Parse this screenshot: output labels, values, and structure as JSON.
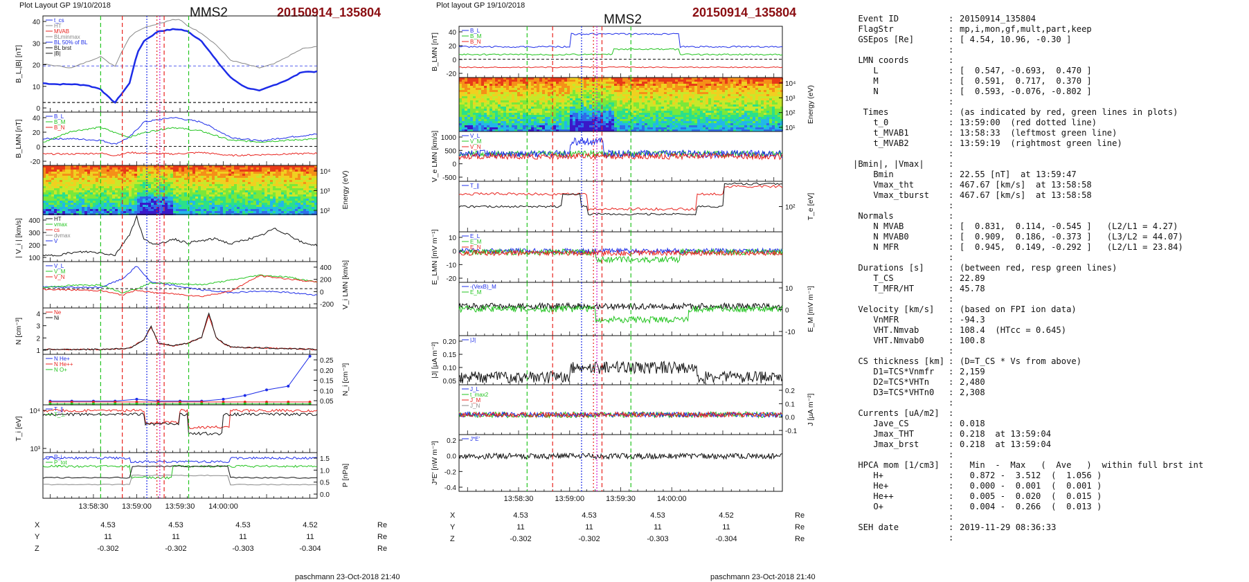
{
  "left_figure": {
    "layout_label": "Plot Layout GP 19/10/2018",
    "spacecraft": "MMS2",
    "event": "20150914_135804",
    "footer": "paschmann 23-Oct-2018 21:40",
    "time_ticks": [
      "13:58:30",
      "13:59:00",
      "13:59:30",
      "14:00:00"
    ],
    "positions": {
      "rows": [
        {
          "label": "X",
          "values": [
            "4.53",
            "4.53",
            "4.53",
            "4.52"
          ],
          "unit": "Re"
        },
        {
          "label": "Y",
          "values": [
            "11",
            "11",
            "11",
            "11"
          ],
          "unit": "Re"
        },
        {
          "label": "Z",
          "values": [
            "-0.302",
            "-0.302",
            "-0.303",
            "-0.304"
          ],
          "unit": "Re"
        }
      ]
    }
  },
  "middle_figure": {
    "layout_label": "Plot layout GP 19/10/2018",
    "spacecraft": "MMS2",
    "event": "20150914_135804",
    "footer": "paschmann 23-Oct-2018 21:40",
    "time_ticks": [
      "13:58:30",
      "13:59:00",
      "13:59:30",
      "14:00:00"
    ],
    "positions": {
      "rows": [
        {
          "label": "X",
          "values": [
            "4.53",
            "4.53",
            "4.53",
            "4.52"
          ],
          "unit": "Re"
        },
        {
          "label": "Y",
          "values": [
            "11",
            "11",
            "11",
            "11"
          ],
          "unit": "Re"
        },
        {
          "label": "Z",
          "values": [
            "-0.302",
            "-0.302",
            "-0.303",
            "-0.304"
          ],
          "unit": "Re"
        }
      ]
    }
  },
  "colors": {
    "red": "#e8221d",
    "green": "#22c41f",
    "blue": "#1d2ce8",
    "black": "#111111",
    "gray": "#888888",
    "darkred": "#8b0e12",
    "magenta": "#d21bd2"
  },
  "chart_data": [
    {
      "type": "line",
      "panel": "left-1",
      "ylabel": "B_L,|B| [nT]",
      "yticks": [
        "40",
        "30",
        "20",
        "10",
        "0"
      ],
      "legend": [
        "t_cs",
        "HT",
        "MVAB",
        "BLminmax",
        "BL 50% of BL",
        "BL brst",
        "|B|"
      ],
      "series": [
        {
          "name": "BL",
          "color": "blue",
          "x_s": [
            0,
            10,
            20,
            30,
            40,
            45,
            50,
            55,
            60,
            65,
            70,
            80,
            90,
            95,
            100,
            110,
            120,
            130,
            140,
            150,
            160,
            170,
            180,
            190
          ],
          "y": [
            10,
            9.5,
            9.5,
            9,
            7,
            3,
            0,
            5,
            10,
            25,
            32,
            37,
            38,
            38,
            37,
            32,
            22,
            13,
            8,
            6,
            9,
            12,
            16,
            16
          ]
        },
        {
          "name": "|B|",
          "color": "gray",
          "x_s": [
            0,
            10,
            20,
            30,
            40,
            45,
            50,
            55,
            60,
            65,
            70,
            80,
            90,
            95,
            100,
            110,
            120,
            130,
            140,
            150,
            160,
            170,
            180,
            190
          ],
          "y": [
            20,
            19,
            18,
            21,
            24,
            21,
            19,
            27,
            34,
            37,
            39,
            41,
            43,
            43,
            40,
            36,
            30,
            22,
            20,
            18,
            20,
            24,
            28,
            29
          ]
        }
      ]
    },
    {
      "type": "line",
      "panel": "left-2",
      "ylabel": "B_LMN [nT]",
      "yticks": [
        "40",
        "20",
        "0",
        "-20"
      ],
      "legend": [
        "B_L",
        "B_M",
        "B_N"
      ],
      "series": [
        {
          "name": "B_L",
          "color": "blue",
          "x_s": [
            0,
            20,
            40,
            50,
            60,
            70,
            90,
            110,
            130,
            150,
            170,
            190
          ],
          "y": [
            10,
            10,
            8,
            3,
            12,
            32,
            38,
            32,
            12,
            7,
            12,
            16
          ]
        },
        {
          "name": "B_M",
          "color": "green",
          "x_s": [
            0,
            20,
            40,
            50,
            60,
            70,
            90,
            110,
            130,
            150,
            170,
            190
          ],
          "y": [
            5,
            20,
            25,
            18,
            12,
            18,
            25,
            20,
            8,
            6,
            8,
            10
          ]
        },
        {
          "name": "B_N",
          "color": "red",
          "x_s": [
            0,
            20,
            40,
            50,
            60,
            70,
            90,
            110,
            130,
            150,
            170,
            190
          ],
          "y": [
            -10,
            -10,
            -9,
            -12,
            -8,
            -9,
            -10,
            -8,
            -12,
            -11,
            -10,
            -9
          ]
        }
      ]
    },
    {
      "type": "heatmap",
      "panel": "left-3",
      "ylabel": "Energy (eV)",
      "yticks": [
        "10⁴",
        "10³",
        "10²"
      ]
    },
    {
      "type": "line",
      "panel": "left-4",
      "ylabel": "| V_i | [km/s]",
      "yticks": [
        "400",
        "300",
        "200",
        "100"
      ],
      "legend": [
        "HT",
        "vmax",
        "cs",
        "dvmax",
        "V"
      ],
      "series": [
        {
          "name": "V",
          "color": "black",
          "x_s": [
            0,
            10,
            20,
            30,
            40,
            50,
            60,
            65,
            70,
            80,
            90,
            100,
            110,
            120,
            130,
            140,
            150,
            160,
            170,
            180,
            190
          ],
          "y": [
            100,
            110,
            130,
            140,
            130,
            110,
            300,
            460,
            250,
            200,
            260,
            220,
            240,
            260,
            210,
            250,
            280,
            350,
            300,
            220,
            200
          ]
        }
      ]
    },
    {
      "type": "line",
      "panel": "left-5",
      "ylabel": "V_i LMN [km/s]",
      "yticks": [
        "400",
        "200",
        "0",
        "-200"
      ],
      "legend": [
        "V_L",
        "V_M",
        "V_N"
      ],
      "series": [
        {
          "name": "V_L",
          "color": "blue",
          "x_s": [
            0,
            20,
            40,
            55,
            65,
            75,
            90,
            110,
            130,
            150,
            170,
            190
          ],
          "y": [
            30,
            20,
            20,
            150,
            350,
            100,
            50,
            -20,
            -60,
            -40,
            -60,
            -100
          ]
        },
        {
          "name": "V_M",
          "color": "green",
          "x_s": [
            0,
            20,
            40,
            55,
            65,
            75,
            90,
            110,
            130,
            150,
            170,
            190
          ],
          "y": [
            20,
            50,
            60,
            -60,
            0,
            90,
            80,
            60,
            130,
            210,
            180,
            100
          ]
        },
        {
          "name": "V_N",
          "color": "red",
          "x_s": [
            0,
            20,
            40,
            55,
            65,
            75,
            90,
            110,
            130,
            150,
            170,
            190
          ],
          "y": [
            -10,
            -20,
            -30,
            -100,
            -20,
            -60,
            -80,
            -120,
            -40,
            200,
            150,
            100
          ]
        }
      ]
    },
    {
      "type": "line",
      "panel": "left-6",
      "ylabel": "N [cm⁻³]",
      "yticks": [
        "4",
        "3",
        "2",
        "1"
      ],
      "legend": [
        "Ne",
        "Ni"
      ],
      "series": [
        {
          "name": "Ne",
          "color": "red",
          "x_s": [
            0,
            40,
            60,
            70,
            75,
            80,
            90,
            100,
            110,
            115,
            120,
            125,
            130,
            160,
            190
          ],
          "y": [
            1,
            1,
            1.1,
            1.8,
            2.8,
            1.5,
            1.3,
            1.5,
            2,
            3.8,
            2,
            1.5,
            1.2,
            1.1,
            1
          ]
        },
        {
          "name": "Ni",
          "color": "black",
          "x_s": [
            0,
            40,
            60,
            70,
            75,
            80,
            90,
            100,
            110,
            115,
            120,
            125,
            130,
            160,
            190
          ],
          "y": [
            1,
            1,
            1.1,
            1.8,
            2.9,
            1.5,
            1.3,
            1.5,
            2,
            4,
            2,
            1.5,
            1.2,
            1.1,
            1
          ]
        }
      ]
    },
    {
      "type": "line",
      "panel": "left-7",
      "ylabel": "N_i [cm⁻³]",
      "yticks": [
        "0.25",
        "0.20",
        "0.15",
        "0.10",
        "0.05"
      ],
      "legend": [
        "N He+",
        "N He++",
        "N O+"
      ],
      "series": [
        {
          "name": "N O+",
          "color": "blue",
          "x_s": [
            5,
            20,
            35,
            50,
            65,
            80,
            95,
            110,
            125,
            140,
            155,
            170,
            185
          ],
          "y": [
            0.02,
            0.02,
            0.02,
            0.02,
            0.03,
            0.02,
            0.02,
            0.02,
            0.03,
            0.05,
            0.08,
            0.1,
            0.26
          ]
        },
        {
          "name": "N He++",
          "color": "red",
          "x_s": [
            5,
            20,
            35,
            50,
            65,
            80,
            95,
            110,
            125,
            140,
            155,
            170,
            185
          ],
          "y": [
            0.015,
            0.015,
            0.015,
            0.015,
            0.015,
            0.015,
            0.015,
            0.015,
            0.015,
            0.015,
            0.015,
            0.015,
            0.015
          ]
        },
        {
          "name": "N He+",
          "color": "green",
          "x_s": [
            5,
            20,
            35,
            50,
            65,
            80,
            95,
            110,
            125,
            140,
            155,
            170,
            185
          ],
          "y": [
            0.005,
            0.005,
            0.005,
            0.005,
            0.005,
            0.005,
            0.005,
            0.005,
            0.005,
            0.005,
            0.005,
            0.005,
            0.005
          ]
        }
      ]
    },
    {
      "type": "line",
      "panel": "left-8",
      "ylabel": "T_i [eV]",
      "yticks": [
        "10⁴",
        "10³"
      ],
      "legend": [
        "T_∥",
        "T_⊥"
      ]
    },
    {
      "type": "line",
      "panel": "left-9",
      "ylabel": "P [nPa]",
      "yticks": [
        "1.5",
        "1.0",
        "0.5",
        "0.0"
      ],
      "legend": [
        "P_i",
        "P_tot"
      ]
    },
    {
      "type": "line",
      "panel": "mid-1",
      "ylabel": "B_LMN [nT]",
      "yticks": [
        "40",
        "20",
        "0",
        "-20"
      ],
      "legend": [
        "B_L",
        "B_M",
        "B_N"
      ]
    },
    {
      "type": "heatmap",
      "panel": "mid-2",
      "ylabel": "Energy (eV)",
      "yticks": [
        "10⁴",
        "10³",
        "10²",
        "10¹"
      ]
    },
    {
      "type": "line",
      "panel": "mid-3",
      "ylabel": "V_e LMN [km/s]",
      "yticks": [
        "1000",
        "500",
        "0",
        "-500"
      ],
      "legend": [
        "V_L",
        "V_M",
        "V_N"
      ]
    },
    {
      "type": "line",
      "panel": "mid-4",
      "ylabel": "T_e [eV]",
      "yticks": [
        "10²"
      ],
      "legend": [
        "T_∥"
      ]
    },
    {
      "type": "line",
      "panel": "mid-5",
      "ylabel": "E_LMN [mV m⁻¹]",
      "yticks": [
        "10",
        "0",
        "-10",
        "-20"
      ],
      "legend": [
        "E_L",
        "E_M",
        "E_N"
      ]
    },
    {
      "type": "line",
      "panel": "mid-6",
      "ylabel": "E_M [mV m⁻¹]",
      "yticks": [
        "10",
        "0",
        "-10"
      ],
      "legend": [
        "-(VexB)_M",
        "E_M"
      ]
    },
    {
      "type": "line",
      "panel": "mid-7",
      "ylabel": "|J| [µA m⁻²]",
      "yticks": [
        "0.20",
        "0.15",
        "0.10",
        "0.05"
      ],
      "legend": [
        "|J|"
      ]
    },
    {
      "type": "line",
      "panel": "mid-8",
      "ylabel": "J [µA m⁻²]",
      "yticks": [
        "0.2",
        "0.1",
        "0.0",
        "-0.1"
      ],
      "legend": [
        "J_L",
        "t_max2",
        "J_M",
        "J_N"
      ]
    },
    {
      "type": "line",
      "panel": "mid-9",
      "ylabel": "J*E' [nW m⁻³]",
      "yticks": [
        "0.2",
        "0.0",
        "-0.2",
        "-0.4"
      ],
      "legend": [
        "J*E'"
      ]
    }
  ],
  "info_panel": {
    "rows": [
      {
        "k": " Event ID",
        "v": "20150914_135804"
      },
      {
        "k": " FlagStr",
        "v": "mp,i,mon,gf,mult,part,keep"
      },
      {
        "k": " GSEpos [Re]",
        "v": "[ 4.54, 10.96, -0.30 ]"
      },
      {
        "k": "",
        "v": ""
      },
      {
        "k": " LMN coords",
        "v": ""
      },
      {
        "k": "    L",
        "v": "[  0.547, -0.693,  0.470 ]"
      },
      {
        "k": "    M",
        "v": "[  0.591,  0.717,  0.370 ]"
      },
      {
        "k": "    N",
        "v": "[  0.593, -0.076, -0.802 ]"
      },
      {
        "k": "",
        "v": ""
      },
      {
        "k": "  Times",
        "v": "(as indicated by red, green lines in plots)"
      },
      {
        "k": "    t_0",
        "v": "13:59:00  (red dotted line)"
      },
      {
        "k": "    t_MVAB1",
        "v": "13:58:33  (leftmost green line)"
      },
      {
        "k": "    t_MVAB2",
        "v": "13:59:19  (rightmost green line)"
      },
      {
        "k": "",
        "v": ""
      },
      {
        "k": "|Bmin|, |Vmax|",
        "v": ""
      },
      {
        "k": "    Bmin",
        "v": "22.55 [nT]  at 13:59:47"
      },
      {
        "k": "    Vmax_tht",
        "v": "467.67 [km/s]  at 13:58:58"
      },
      {
        "k": "    Vmax_tburst",
        "v": "467.67 [km/s]  at 13:58:58"
      },
      {
        "k": "",
        "v": ""
      },
      {
        "k": " Normals",
        "v": ""
      },
      {
        "k": "    N MVAB",
        "v": "[  0.831,  0.114, -0.545 ]   (L2/L1 = 4.27)"
      },
      {
        "k": "    N MVAB0",
        "v": "[  0.909,  0.186, -0.373 ]   (L3/L2 = 44.07)"
      },
      {
        "k": "    N MFR",
        "v": "[  0.945,  0.149, -0.292 ]   (L2/L1 = 23.84)"
      },
      {
        "k": "",
        "v": ""
      },
      {
        "k": " Durations [s]",
        "v": "(between red, resp green lines)"
      },
      {
        "k": "    T_CS",
        "v": "22.89"
      },
      {
        "k": "    T_MFR/HT",
        "v": "45.78"
      },
      {
        "k": "",
        "v": ""
      },
      {
        "k": " Velocity [km/s]",
        "v": "(based on FPI ion data)"
      },
      {
        "k": "    VnMFR",
        "v": "-94.3"
      },
      {
        "k": "    VHT.Nmvab",
        "v": "108.4  (HTcc = 0.645)"
      },
      {
        "k": "    VHT.Nmvab0",
        "v": "100.8"
      },
      {
        "k": "",
        "v": ""
      },
      {
        "k": " CS thickness [km]",
        "v": "(D=T_CS * Vs from above)"
      },
      {
        "k": "    D1=TCS*Vnmfr",
        "v": "2,159"
      },
      {
        "k": "    D2=TCS*VHTn",
        "v": "2,480"
      },
      {
        "k": "    D3=TCS*VHTn0",
        "v": "2,308"
      },
      {
        "k": "",
        "v": ""
      },
      {
        "k": " Currents [uA/m2]",
        "v": ""
      },
      {
        "k": "    Jave_CS",
        "v": "0.018"
      },
      {
        "k": "    Jmax_THT",
        "v": "0.218  at 13:59:04"
      },
      {
        "k": "    Jmax_brst",
        "v": "0.218  at 13:59:04"
      },
      {
        "k": "",
        "v": ""
      },
      {
        "k": " HPCA mom [1/cm3]",
        "v": "  Min  -  Max   (  Ave   )  within full brst int"
      },
      {
        "k": "    H+",
        "v": "  0.872 -  3.512  (  1.056 )"
      },
      {
        "k": "    He+",
        "v": "  0.000 -  0.001  (  0.001 )"
      },
      {
        "k": "    He++",
        "v": "  0.005 -  0.020  (  0.015 )"
      },
      {
        "k": "    O+",
        "v": "  0.004 -  0.266  (  0.013 )"
      },
      {
        "k": "",
        "v": ""
      },
      {
        "k": " SEH date",
        "v": "2019-11-29 08:36:33"
      },
      {
        "k": "",
        "v": ""
      }
    ]
  }
}
